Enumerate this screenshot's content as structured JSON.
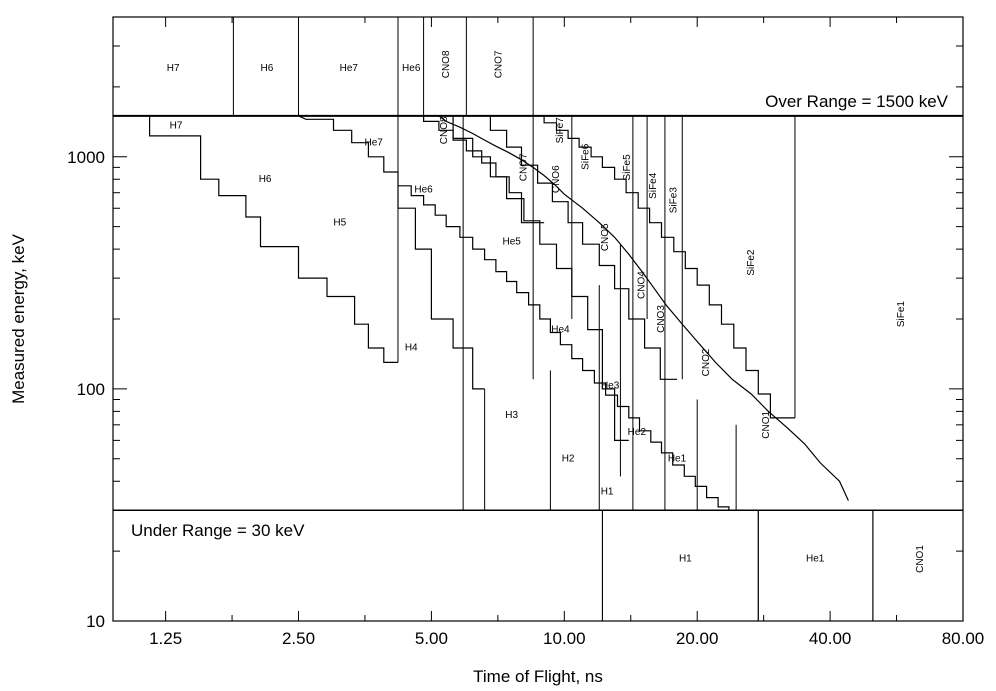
{
  "chart_data": {
    "type": "line",
    "title": "",
    "xlabel": "Time of Flight, ns",
    "ylabel": "Measured energy, keV",
    "x_scale": "log",
    "y_scale": "log",
    "xlim": [
      0.95,
      80
    ],
    "ylim": [
      10,
      4000
    ],
    "x_ticks": [
      {
        "value": 1.25,
        "label": "1.25"
      },
      {
        "value": 2.5,
        "label": "2.50"
      },
      {
        "value": 5,
        "label": "5.00"
      },
      {
        "value": 10,
        "label": "10.00"
      },
      {
        "value": 20,
        "label": "20.00"
      },
      {
        "value": 40,
        "label": "40.00"
      },
      {
        "value": 80,
        "label": "80.00"
      }
    ],
    "y_ticks": [
      {
        "value": 10,
        "label": "10"
      },
      {
        "value": 100,
        "label": "100"
      },
      {
        "value": 1000,
        "label": "1000"
      }
    ],
    "annotations": {
      "over_range": "Over Range = 1500 keV",
      "under_range": "Under Range = 30 keV"
    },
    "over_range_energy": 1500,
    "under_range_energy": 30,
    "top_bins": [
      {
        "name": "H7",
        "x0": 0.95,
        "x1": 1.78
      },
      {
        "name": "H6",
        "x0": 1.78,
        "x1": 2.5
      },
      {
        "name": "He7",
        "x0": 2.5,
        "x1": 4.2
      },
      {
        "name": "He6",
        "x0": 4.2,
        "x1": 4.8
      },
      {
        "name": "CNO8",
        "x0": 4.8,
        "x1": 6.0
      },
      {
        "name": "CNO7",
        "x0": 6.0,
        "x1": 8.5
      }
    ],
    "bottom_bins": [
      {
        "name": "H1",
        "x0": 12.2,
        "x1": 27.5
      },
      {
        "name": "He1",
        "x0": 27.5,
        "x1": 50.0
      },
      {
        "name": "CNO1",
        "x0": 50.0,
        "x1": 80.0
      }
    ],
    "boundaries": [
      {
        "x": [
          1.15,
          1.15,
          1.5,
          1.5,
          1.65,
          1.65,
          1.9,
          1.9,
          2.05,
          2.05,
          2.5,
          2.5,
          2.9,
          2.9,
          3.35,
          3.35,
          3.6,
          3.6,
          3.9,
          3.9,
          4.2
        ],
        "y": [
          1500,
          1230,
          1230,
          800,
          800,
          680,
          680,
          550,
          550,
          410,
          410,
          300,
          300,
          250,
          250,
          190,
          190,
          150,
          150,
          130,
          130
        ]
      },
      {
        "x": [
          2.5,
          2.6,
          3.0,
          3.0,
          3.3,
          3.3,
          3.6,
          3.6,
          3.9,
          3.9,
          4.2,
          4.2,
          4.6,
          4.6,
          5.0,
          5.0,
          5.6,
          5.6,
          6.2,
          6.2,
          6.6
        ],
        "y": [
          1500,
          1450,
          1450,
          1300,
          1300,
          1150,
          1150,
          1000,
          1000,
          860,
          860,
          600,
          600,
          400,
          400,
          200,
          200,
          150,
          150,
          100,
          100
        ]
      },
      {
        "x": [
          4.2,
          4.8,
          4.8,
          5.2,
          5.2,
          5.6,
          5.6,
          6.0,
          6.0,
          6.5,
          6.5,
          7.0,
          7.0,
          7.5,
          7.5,
          8.0,
          8.0,
          9.0
        ],
        "y": [
          1500,
          1500,
          1420,
          1420,
          1300,
          1300,
          1180,
          1180,
          1060,
          1060,
          940,
          940,
          820,
          820,
          700,
          700,
          520,
          520
        ]
      },
      {
        "x": [
          4.8,
          5.2,
          5.4,
          5.4,
          5.8,
          5.8,
          6.2,
          6.2,
          6.6,
          6.6,
          7.0,
          7.0,
          7.5,
          7.5,
          8.0,
          8.0,
          8.5,
          8.5,
          9.0,
          9.0,
          9.5,
          9.5,
          10.0,
          10.0,
          11.0,
          11.0,
          12.0,
          12.0,
          13.0,
          13.0,
          14.0,
          14.0,
          15.0,
          15.0,
          16.0,
          16.0,
          17.0,
          17.0,
          18.5,
          18.5,
          20.0,
          20.0,
          22.0,
          22.0,
          24.0,
          24.0,
          26.5,
          26.5,
          29.0,
          29.0,
          32.0,
          32.0,
          35.0,
          35.0,
          38.0,
          38.0,
          42.0,
          42.0,
          44.0
        ],
        "y": [
          1500,
          1500,
          1420,
          1420,
          1340,
          1340,
          1260,
          1260,
          1180,
          1180,
          1110,
          1110,
          1040,
          1040,
          970,
          970,
          900,
          900,
          830,
          830,
          760,
          760,
          690,
          690,
          600,
          600,
          520,
          520,
          450,
          450,
          380,
          380,
          320,
          320,
          270,
          270,
          230,
          230,
          190,
          190,
          160,
          160,
          130,
          130,
          110,
          110,
          95,
          95,
          80,
          80,
          68,
          68,
          58,
          58,
          48,
          48,
          40,
          40,
          33
        ]
      },
      {
        "x": [
          4.2,
          4.5,
          4.5,
          4.8,
          4.8,
          5.1,
          5.1,
          5.4,
          5.4,
          5.8,
          5.8,
          6.2,
          6.2,
          6.6,
          6.6,
          7.0,
          7.0,
          7.4,
          7.4,
          7.8,
          7.8,
          8.3,
          8.3,
          8.8,
          8.8,
          9.3,
          9.3,
          9.8,
          9.8,
          10.4,
          10.4,
          11.0,
          11.0,
          11.7,
          11.7,
          12.4,
          12.4,
          13.2,
          13.2,
          14.0,
          14.0,
          14.8,
          14.8,
          15.7,
          15.7,
          16.6,
          16.6,
          17.6,
          17.6,
          18.7,
          18.7,
          19.8,
          19.8,
          21.0,
          21.0,
          22.3,
          22.3,
          23.6,
          23.6,
          25.0,
          25.0,
          26.5,
          26.5,
          28.0,
          28.0,
          30.0
        ],
        "y": [
          750,
          750,
          680,
          680,
          620,
          620,
          560,
          560,
          500,
          500,
          450,
          450,
          400,
          400,
          360,
          360,
          320,
          320,
          290,
          290,
          260,
          260,
          230,
          230,
          200,
          200,
          175,
          175,
          155,
          155,
          135,
          135,
          120,
          120,
          106,
          106,
          94,
          94,
          84,
          84,
          75,
          75,
          66,
          66,
          59,
          59,
          53,
          53,
          47,
          47,
          42,
          42,
          38,
          38,
          34,
          34,
          31,
          31,
          30,
          30,
          30,
          30,
          30,
          30,
          30,
          30
        ]
      },
      {
        "x": [
          5.0,
          5.6,
          5.6,
          6.2,
          6.2,
          6.8,
          6.8,
          7.4,
          7.4,
          8.1,
          8.1,
          8.8,
          8.8,
          9.6,
          9.6,
          10.4,
          10.4,
          11.3,
          11.3,
          12.2,
          12.2,
          13.0,
          13.0,
          14.0
        ],
        "y": [
          1500,
          1500,
          1200,
          1200,
          1000,
          1000,
          820,
          820,
          660,
          660,
          530,
          530,
          420,
          420,
          330,
          330,
          250,
          250,
          180,
          180,
          100,
          100,
          60,
          60
        ]
      },
      {
        "x": [
          6.2,
          6.8,
          6.8,
          7.4,
          7.4,
          8.0,
          8.0,
          8.7,
          8.7,
          9.4,
          9.4,
          10.2,
          10.2,
          11.0,
          11.0,
          12.0,
          12.0,
          13.0,
          13.0,
          14.0,
          14.0,
          15.2,
          15.2,
          16.5,
          16.5,
          18.0
        ],
        "y": [
          1500,
          1500,
          1300,
          1300,
          1100,
          1100,
          920,
          920,
          770,
          770,
          640,
          640,
          520,
          520,
          420,
          420,
          340,
          340,
          270,
          270,
          200,
          200,
          150,
          150,
          110,
          110
        ]
      },
      {
        "x": [
          8.5,
          9.0,
          9.0,
          9.6,
          9.6,
          10.2,
          10.2,
          10.8,
          10.8,
          11.5,
          11.5,
          12.2,
          12.2,
          13.0,
          13.0,
          13.8,
          13.8,
          14.7,
          14.7,
          15.6,
          15.6,
          16.6,
          16.6,
          17.7,
          17.7,
          18.8,
          18.8,
          20.0,
          20.0,
          21.3,
          21.3,
          22.7,
          22.7,
          24.2,
          24.2,
          25.8,
          25.8,
          27.5,
          27.5,
          29.3,
          29.3,
          31.2,
          31.2,
          33.3
        ],
        "y": [
          1500,
          1500,
          1400,
          1400,
          1300,
          1300,
          1200,
          1200,
          1100,
          1100,
          1000,
          1000,
          900,
          900,
          800,
          800,
          700,
          700,
          600,
          600,
          520,
          520,
          450,
          450,
          390,
          390,
          330,
          330,
          280,
          280,
          230,
          230,
          190,
          190,
          150,
          150,
          120,
          120,
          95,
          95,
          75,
          75,
          75,
          75
        ]
      }
    ],
    "verticals": [
      {
        "x": 4.2,
        "y0": 130,
        "y1": 1500
      },
      {
        "x": 5.9,
        "y0": 30,
        "y1": 1500
      },
      {
        "x": 6.6,
        "y0": 30,
        "y1": 100
      },
      {
        "x": 8.5,
        "y0": 110,
        "y1": 1500
      },
      {
        "x": 9.3,
        "y0": 30,
        "y1": 120
      },
      {
        "x": 10.4,
        "y0": 200,
        "y1": 1500
      },
      {
        "x": 12.0,
        "y0": 30,
        "y1": 280
      },
      {
        "x": 12.2,
        "y0": 10,
        "y1": 30
      },
      {
        "x": 13.4,
        "y0": 42,
        "y1": 420
      },
      {
        "x": 14.3,
        "y0": 30,
        "y1": 1500
      },
      {
        "x": 15.4,
        "y0": 200,
        "y1": 1500
      },
      {
        "x": 16.9,
        "y0": 30,
        "y1": 1500
      },
      {
        "x": 18.5,
        "y0": 110,
        "y1": 1500
      },
      {
        "x": 20.0,
        "y0": 30,
        "y1": 90
      },
      {
        "x": 24.5,
        "y0": 30,
        "y1": 70
      },
      {
        "x": 27.5,
        "y0": 10,
        "y1": 30
      },
      {
        "x": 33.3,
        "y0": 75,
        "y1": 1500
      },
      {
        "x": 50.0,
        "y0": 10,
        "y1": 30
      }
    ],
    "region_labels": [
      {
        "text": "H7",
        "x": 1.3,
        "y": 2400,
        "rotate": false
      },
      {
        "text": "H6",
        "x": 2.12,
        "y": 2400,
        "rotate": false
      },
      {
        "text": "He7",
        "x": 3.25,
        "y": 2400,
        "rotate": false
      },
      {
        "text": "He6",
        "x": 4.5,
        "y": 2400,
        "rotate": false
      },
      {
        "text": "CNO8",
        "x": 5.4,
        "y": 2500,
        "rotate": true
      },
      {
        "text": "CNO7",
        "x": 7.1,
        "y": 2500,
        "rotate": true
      },
      {
        "text": "H7",
        "x": 1.32,
        "y": 1360,
        "rotate": false
      },
      {
        "text": "H6",
        "x": 2.1,
        "y": 800,
        "rotate": false
      },
      {
        "text": "H5",
        "x": 3.1,
        "y": 520,
        "rotate": false
      },
      {
        "text": "H4",
        "x": 4.5,
        "y": 150,
        "rotate": false
      },
      {
        "text": "H3",
        "x": 7.6,
        "y": 77,
        "rotate": false
      },
      {
        "text": "H2",
        "x": 10.2,
        "y": 50,
        "rotate": false
      },
      {
        "text": "H1",
        "x": 12.5,
        "y": 36,
        "rotate": false
      },
      {
        "text": "He7",
        "x": 3.7,
        "y": 1150,
        "rotate": false
      },
      {
        "text": "He6",
        "x": 4.8,
        "y": 720,
        "rotate": false
      },
      {
        "text": "He5",
        "x": 7.6,
        "y": 430,
        "rotate": false
      },
      {
        "text": "He4",
        "x": 9.8,
        "y": 180,
        "rotate": false
      },
      {
        "text": "He3",
        "x": 12.7,
        "y": 103,
        "rotate": false
      },
      {
        "text": "He2",
        "x": 14.6,
        "y": 65,
        "rotate": false
      },
      {
        "text": "He1",
        "x": 18.0,
        "y": 50,
        "rotate": false
      },
      {
        "text": "CNO8",
        "x": 5.35,
        "y": 1300,
        "rotate": true
      },
      {
        "text": "CNO7",
        "x": 8.1,
        "y": 900,
        "rotate": true
      },
      {
        "text": "CNO6",
        "x": 9.6,
        "y": 800,
        "rotate": true
      },
      {
        "text": "CNO5",
        "x": 12.4,
        "y": 450,
        "rotate": true
      },
      {
        "text": "CNO4",
        "x": 15.0,
        "y": 280,
        "rotate": true
      },
      {
        "text": "CNO3",
        "x": 16.6,
        "y": 200,
        "rotate": true
      },
      {
        "text": "CNO2",
        "x": 21.0,
        "y": 130,
        "rotate": true
      },
      {
        "text": "CNO1",
        "x": 28.7,
        "y": 70,
        "rotate": true
      },
      {
        "text": "SiFe7",
        "x": 9.8,
        "y": 1300,
        "rotate": true
      },
      {
        "text": "SiFe6",
        "x": 11.2,
        "y": 1000,
        "rotate": true
      },
      {
        "text": "SiFe5",
        "x": 13.9,
        "y": 900,
        "rotate": true
      },
      {
        "text": "SiFe4",
        "x": 15.9,
        "y": 750,
        "rotate": true
      },
      {
        "text": "SiFe3",
        "x": 17.7,
        "y": 650,
        "rotate": true
      },
      {
        "text": "SiFe2",
        "x": 26.5,
        "y": 350,
        "rotate": true
      },
      {
        "text": "SiFe1",
        "x": 58.0,
        "y": 210,
        "rotate": true
      },
      {
        "text": "H1",
        "x": 18.8,
        "y": 18.5,
        "rotate": false
      },
      {
        "text": "He1",
        "x": 37.0,
        "y": 18.5,
        "rotate": false
      },
      {
        "text": "CNO1",
        "x": 64.0,
        "y": 18.5,
        "rotate": true
      }
    ],
    "grid": false,
    "legend": "none"
  }
}
